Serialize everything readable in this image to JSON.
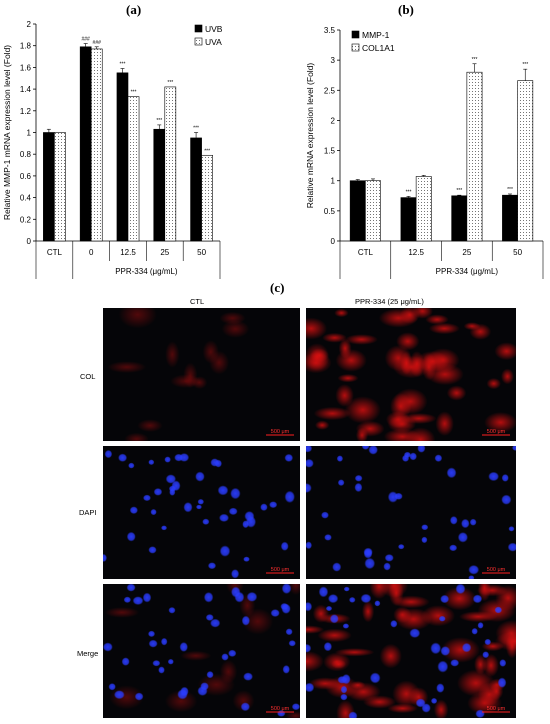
{
  "panels": {
    "a": "(a)",
    "b": "(b)",
    "c": "(c)"
  },
  "chart_data": [
    {
      "type": "bar",
      "ylabel": "Relative MMP-1 mRNA expression level (Fold)",
      "ylim": [
        0,
        2
      ],
      "yticks": [
        "0",
        "0.2",
        "0.4",
        "0.6",
        "0.8",
        "1",
        "1.2",
        "1.4",
        "1.6",
        "1.8",
        "2"
      ],
      "categories": [
        "CTL",
        "0",
        "12.5",
        "25",
        "50"
      ],
      "group_label": "PPR-334 (μg/mL)",
      "legend_position": "top-right",
      "series": [
        {
          "name": "UVB",
          "values": [
            1.0,
            1.79,
            1.55,
            1.03,
            0.95
          ],
          "errors": [
            0.03,
            0.03,
            0.04,
            0.04,
            0.05
          ],
          "fill": "#000000",
          "annotations": [
            "",
            "###",
            "***",
            "***",
            "***"
          ]
        },
        {
          "name": "UVA",
          "values": [
            1.0,
            1.77,
            1.33,
            1.42,
            0.79
          ],
          "errors": [
            0.0,
            0.02,
            0.0,
            0.0,
            0.0
          ],
          "fill": "dotted",
          "annotations": [
            "",
            "###",
            "***",
            "***",
            "***"
          ]
        }
      ]
    },
    {
      "type": "bar",
      "ylabel": "Relative mRNA expression level (Fold)",
      "ylim": [
        0,
        3.5
      ],
      "yticks": [
        "0",
        "0.5",
        "1",
        "1.5",
        "2",
        "2.5",
        "3",
        "3.5"
      ],
      "categories": [
        "CTL",
        "12.5",
        "25",
        "50"
      ],
      "group_label": "PPR-334 (μg/mL)",
      "legend_position": "top-left",
      "series": [
        {
          "name": "MMP-1",
          "values": [
            1.0,
            0.72,
            0.75,
            0.76
          ],
          "errors": [
            0.02,
            0.02,
            0.01,
            0.02
          ],
          "fill": "#000000",
          "annotations": [
            "",
            "***",
            "***",
            "***"
          ]
        },
        {
          "name": "COL1A1",
          "values": [
            1.0,
            1.07,
            2.8,
            2.66
          ],
          "errors": [
            0.03,
            0.02,
            0.14,
            0.19
          ],
          "fill": "dotted",
          "annotations": [
            "",
            "",
            "***",
            "***"
          ]
        }
      ]
    }
  ],
  "micrographs": {
    "columns": [
      "CTL",
      "PPR-334 (25 μg/mL)"
    ],
    "rows": [
      "COL",
      "DAPI",
      "Merge"
    ],
    "scale_bar": "500 μm",
    "colors": {
      "col_stain": "#e01010",
      "dapi_stain": "#2a3cff",
      "background": "#050508"
    }
  }
}
